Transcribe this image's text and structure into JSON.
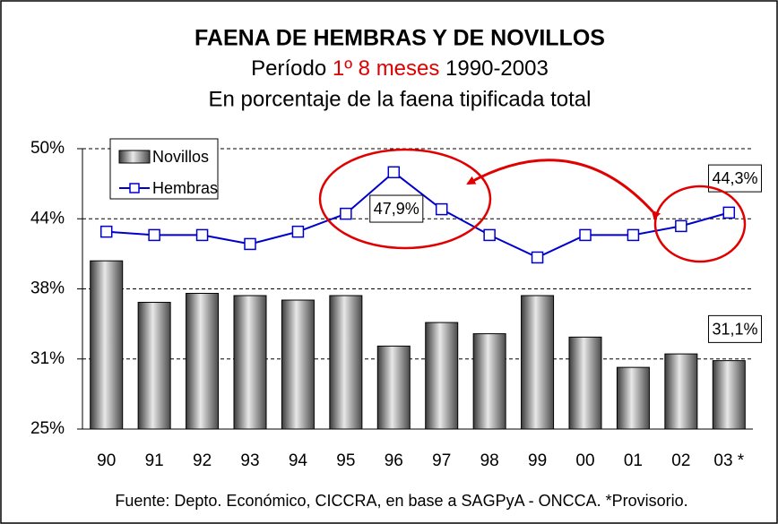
{
  "chart_data": {
    "type": "bar_line",
    "title": "FAENA DE HEMBRAS Y DE NOVILLOS",
    "subtitle": [
      "Período",
      "1º 8 meses",
      "1990-2003"
    ],
    "subtitle2": "En porcentaje de la faena tipificada total",
    "source": "Fuente: Depto. Económico, CICCRA, en base a SAGPyA - ONCCA. *Provisorio.",
    "categories": [
      "90",
      "91",
      "92",
      "93",
      "94",
      "95",
      "96",
      "97",
      "98",
      "99",
      "00",
      "01",
      "02",
      "03 *"
    ],
    "series": [
      {
        "name": "Novillos",
        "type": "bar",
        "color": "#808080",
        "values": [
          40.0,
          36.3,
          37.1,
          36.9,
          36.5,
          36.9,
          32.4,
          34.5,
          33.5,
          36.9,
          33.2,
          30.5,
          31.7,
          31.1
        ],
        "value_labels": [
          null,
          null,
          null,
          null,
          null,
          null,
          null,
          null,
          null,
          null,
          null,
          null,
          null,
          "31,1%"
        ]
      },
      {
        "name": "Hembras",
        "type": "line",
        "color": "#0000cc",
        "values": [
          42.6,
          42.3,
          42.3,
          41.5,
          42.6,
          44.2,
          47.9,
          44.6,
          42.3,
          40.3,
          42.3,
          42.3,
          43.1,
          44.3
        ],
        "value_labels": [
          null,
          null,
          null,
          null,
          null,
          null,
          "47,9%",
          null,
          null,
          null,
          null,
          null,
          null,
          "44,3%"
        ]
      }
    ],
    "ylim": [
      25,
      50
    ],
    "yticks": [
      {
        "value": 25,
        "label": "25%"
      },
      {
        "value": 31.25,
        "label": "31%"
      },
      {
        "value": 37.5,
        "label": "38%"
      },
      {
        "value": 43.75,
        "label": "44%"
      },
      {
        "value": 50,
        "label": "50%"
      }
    ],
    "grid": true,
    "legend": "top-left"
  }
}
